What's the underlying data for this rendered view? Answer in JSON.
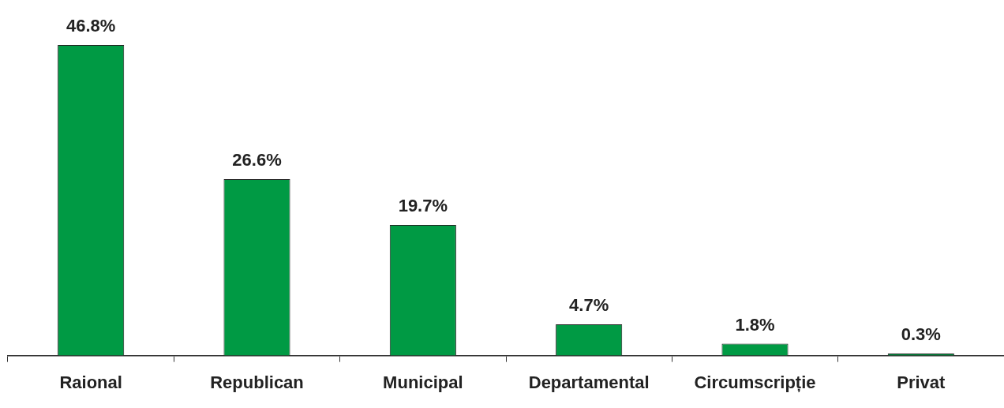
{
  "chart_data": {
    "type": "bar",
    "categories": [
      "Raional",
      "Republican",
      "Municipal",
      "Departamental",
      "Circumscripție",
      "Privat"
    ],
    "values": [
      46.8,
      26.6,
      19.7,
      4.7,
      1.8,
      0.3
    ],
    "value_labels": [
      "46.8%",
      "26.6%",
      "19.7%",
      "4.7%",
      "1.8%",
      "0.3%"
    ],
    "color": "#009a44",
    "grid": false,
    "legend": false
  }
}
